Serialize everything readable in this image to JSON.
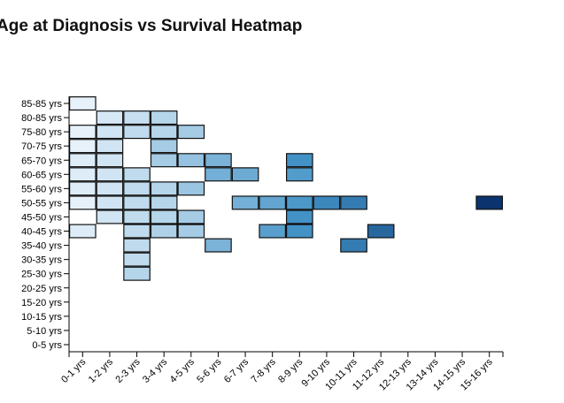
{
  "chart_data": {
    "type": "heatmap",
    "title": "Age at Diagnosis vs Survival Heatmap",
    "xlabel": "",
    "ylabel": "",
    "x_categories": [
      "0-1 yrs",
      "1-2 yrs",
      "2-3 yrs",
      "3-4 yrs",
      "4-5 yrs",
      "5-6 yrs",
      "6-7 yrs",
      "7-8 yrs",
      "8-9 yrs",
      "9-10 yrs",
      "10-11 yrs",
      "11-12 yrs",
      "12-13 yrs",
      "13-14 yrs",
      "14-15 yrs",
      "15-16 yrs"
    ],
    "y_categories": [
      "0-5 yrs",
      "5-10 yrs",
      "10-15 yrs",
      "15-20 yrs",
      "20-25 yrs",
      "25-30 yrs",
      "30-35 yrs",
      "35-40 yrs",
      "40-45 yrs",
      "45-50 yrs",
      "50-55 yrs",
      "55-60 yrs",
      "60-65 yrs",
      "65-70 yrs",
      "70-75 yrs",
      "75-80 yrs",
      "80-85 yrs",
      "85-85 yrs"
    ],
    "color_scale": {
      "low": "#f7fbff",
      "high": "#08306b",
      "domain": [
        0,
        1
      ]
    },
    "cells": [
      {
        "x": "0-1 yrs",
        "y": "85-85 yrs",
        "value": 0.05
      },
      {
        "x": "1-2 yrs",
        "y": "80-85 yrs",
        "value": 0.1
      },
      {
        "x": "2-3 yrs",
        "y": "80-85 yrs",
        "value": 0.15
      },
      {
        "x": "3-4 yrs",
        "y": "80-85 yrs",
        "value": 0.2
      },
      {
        "x": "0-1 yrs",
        "y": "75-80 yrs",
        "value": 0.05
      },
      {
        "x": "1-2 yrs",
        "y": "75-80 yrs",
        "value": 0.12
      },
      {
        "x": "2-3 yrs",
        "y": "75-80 yrs",
        "value": 0.17
      },
      {
        "x": "3-4 yrs",
        "y": "75-80 yrs",
        "value": 0.2
      },
      {
        "x": "4-5 yrs",
        "y": "75-80 yrs",
        "value": 0.25
      },
      {
        "x": "0-1 yrs",
        "y": "70-75 yrs",
        "value": 0.05
      },
      {
        "x": "1-2 yrs",
        "y": "70-75 yrs",
        "value": 0.12
      },
      {
        "x": "3-4 yrs",
        "y": "70-75 yrs",
        "value": 0.25
      },
      {
        "x": "0-1 yrs",
        "y": "65-70 yrs",
        "value": 0.08
      },
      {
        "x": "1-2 yrs",
        "y": "65-70 yrs",
        "value": 0.12
      },
      {
        "x": "3-4 yrs",
        "y": "65-70 yrs",
        "value": 0.25
      },
      {
        "x": "4-5 yrs",
        "y": "65-70 yrs",
        "value": 0.3
      },
      {
        "x": "5-6 yrs",
        "y": "65-70 yrs",
        "value": 0.38
      },
      {
        "x": "8-9 yrs",
        "y": "65-70 yrs",
        "value": 0.55
      },
      {
        "x": "0-1 yrs",
        "y": "60-65 yrs",
        "value": 0.08
      },
      {
        "x": "1-2 yrs",
        "y": "60-65 yrs",
        "value": 0.12
      },
      {
        "x": "2-3 yrs",
        "y": "60-65 yrs",
        "value": 0.17
      },
      {
        "x": "5-6 yrs",
        "y": "60-65 yrs",
        "value": 0.4
      },
      {
        "x": "6-7 yrs",
        "y": "60-65 yrs",
        "value": 0.42
      },
      {
        "x": "8-9 yrs",
        "y": "60-65 yrs",
        "value": 0.5
      },
      {
        "x": "0-1 yrs",
        "y": "55-60 yrs",
        "value": 0.08
      },
      {
        "x": "1-2 yrs",
        "y": "55-60 yrs",
        "value": 0.12
      },
      {
        "x": "2-3 yrs",
        "y": "55-60 yrs",
        "value": 0.17
      },
      {
        "x": "3-4 yrs",
        "y": "55-60 yrs",
        "value": 0.2
      },
      {
        "x": "4-5 yrs",
        "y": "55-60 yrs",
        "value": 0.28
      },
      {
        "x": "0-1 yrs",
        "y": "50-55 yrs",
        "value": 0.05
      },
      {
        "x": "1-2 yrs",
        "y": "50-55 yrs",
        "value": 0.12
      },
      {
        "x": "2-3 yrs",
        "y": "50-55 yrs",
        "value": 0.17
      },
      {
        "x": "3-4 yrs",
        "y": "50-55 yrs",
        "value": 0.2
      },
      {
        "x": "6-7 yrs",
        "y": "50-55 yrs",
        "value": 0.4
      },
      {
        "x": "7-8 yrs",
        "y": "50-55 yrs",
        "value": 0.45
      },
      {
        "x": "8-9 yrs",
        "y": "50-55 yrs",
        "value": 0.52
      },
      {
        "x": "9-10 yrs",
        "y": "50-55 yrs",
        "value": 0.6
      },
      {
        "x": "10-11 yrs",
        "y": "50-55 yrs",
        "value": 0.65
      },
      {
        "x": "15-16 yrs",
        "y": "50-55 yrs",
        "value": 0.98
      },
      {
        "x": "1-2 yrs",
        "y": "45-50 yrs",
        "value": 0.12
      },
      {
        "x": "2-3 yrs",
        "y": "45-50 yrs",
        "value": 0.17
      },
      {
        "x": "3-4 yrs",
        "y": "45-50 yrs",
        "value": 0.2
      },
      {
        "x": "4-5 yrs",
        "y": "45-50 yrs",
        "value": 0.25
      },
      {
        "x": "8-9 yrs",
        "y": "45-50 yrs",
        "value": 0.55
      },
      {
        "x": "0-1 yrs",
        "y": "40-45 yrs",
        "value": 0.08
      },
      {
        "x": "2-3 yrs",
        "y": "40-45 yrs",
        "value": 0.17
      },
      {
        "x": "3-4 yrs",
        "y": "40-45 yrs",
        "value": 0.22
      },
      {
        "x": "4-5 yrs",
        "y": "40-45 yrs",
        "value": 0.25
      },
      {
        "x": "7-8 yrs",
        "y": "40-45 yrs",
        "value": 0.48
      },
      {
        "x": "8-9 yrs",
        "y": "40-45 yrs",
        "value": 0.55
      },
      {
        "x": "11-12 yrs",
        "y": "40-45 yrs",
        "value": 0.75
      },
      {
        "x": "2-3 yrs",
        "y": "35-40 yrs",
        "value": 0.17
      },
      {
        "x": "5-6 yrs",
        "y": "35-40 yrs",
        "value": 0.38
      },
      {
        "x": "10-11 yrs",
        "y": "35-40 yrs",
        "value": 0.65
      },
      {
        "x": "2-3 yrs",
        "y": "30-35 yrs",
        "value": 0.17
      },
      {
        "x": "2-3 yrs",
        "y": "25-30 yrs",
        "value": 0.2
      }
    ]
  }
}
